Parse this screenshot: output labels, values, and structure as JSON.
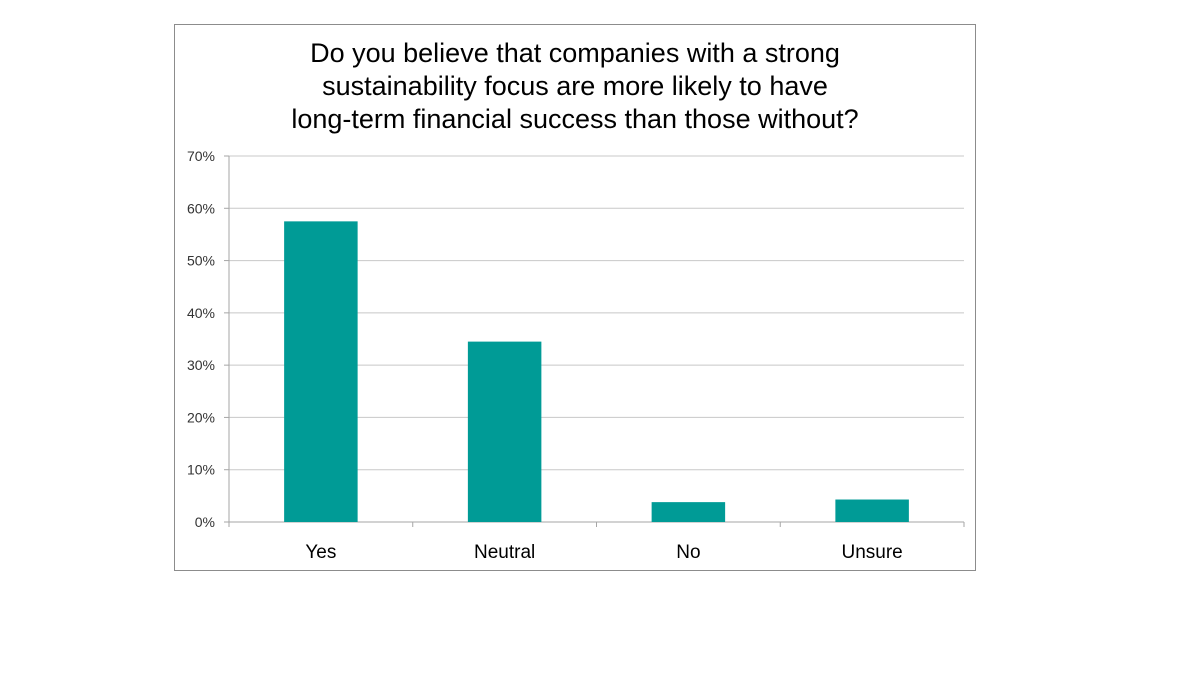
{
  "chart_data": {
    "type": "bar",
    "title_lines": [
      "Do you believe that companies with a strong",
      "sustainability focus are more likely to have",
      "long-term financial success than those without?"
    ],
    "categories": [
      "Yes",
      "Neutral",
      "No",
      "Unsure"
    ],
    "values": [
      57.5,
      34.5,
      3.8,
      4.3
    ],
    "ylim": [
      0,
      70
    ],
    "yticks": [
      0,
      10,
      20,
      30,
      40,
      50,
      60,
      70
    ],
    "ytick_labels": [
      "0%",
      "10%",
      "20%",
      "30%",
      "40%",
      "50%",
      "60%",
      "70%"
    ],
    "xlabel": "",
    "ylabel": "",
    "grid": true,
    "bar_color": "#009b96",
    "grid_color": "#c8c8c8",
    "axis_color": "#a6a6a6"
  }
}
